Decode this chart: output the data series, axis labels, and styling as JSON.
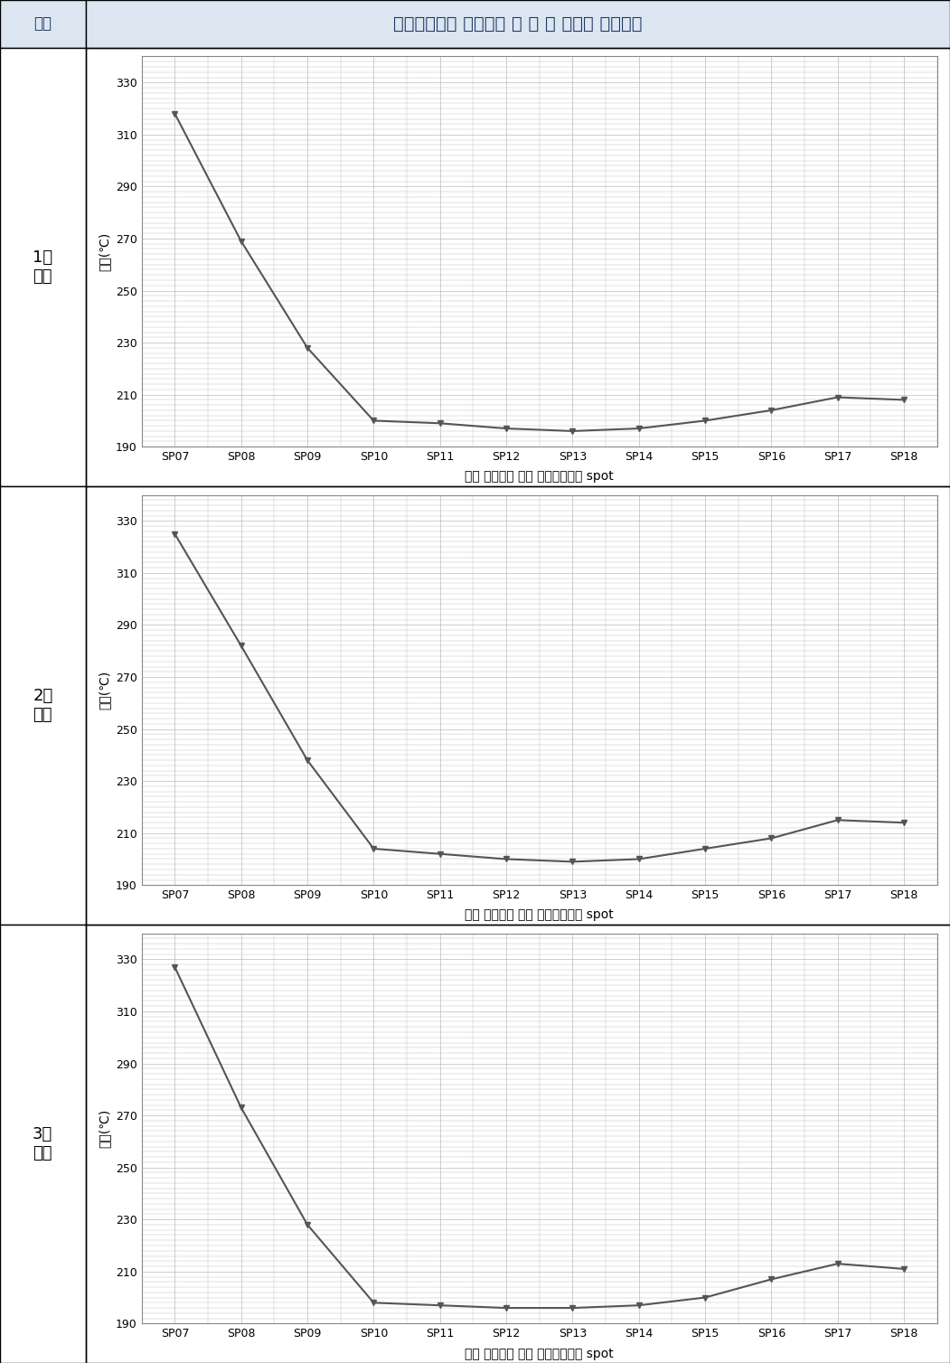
{
  "title_header": "제동디스크의 최고온도 일 때 각 지점의 온도현황",
  "header_label": "구분",
  "x_labels": [
    "SP07",
    "SP08",
    "SP09",
    "SP10",
    "SP11",
    "SP12",
    "SP13",
    "SP14",
    "SP15",
    "SP16",
    "SP17",
    "SP18"
  ],
  "xlabel": "제동 디스크의 회전 중심으로부터 spot",
  "ylabel": "온도(℃)",
  "ylim": [
    190,
    340
  ],
  "yticks": [
    190,
    210,
    230,
    250,
    270,
    290,
    310,
    330
  ],
  "series": [
    {
      "label": "1회\n시험",
      "values": [
        318,
        269,
        228,
        200,
        199,
        197,
        196,
        197,
        200,
        204,
        209,
        208
      ]
    },
    {
      "label": "2회\n시험",
      "values": [
        325,
        282,
        238,
        204,
        202,
        200,
        199,
        200,
        204,
        208,
        215,
        214
      ]
    },
    {
      "label": "3회\n시험",
      "values": [
        327,
        273,
        228,
        198,
        197,
        196,
        196,
        197,
        200,
        207,
        213,
        211
      ]
    }
  ],
  "line_color": "#555555",
  "marker": "v",
  "marker_size": 5,
  "marker_color": "#555555",
  "bg_color": "#ffffff",
  "grid_color": "#bbbbbb",
  "header_bg": "#dce6f1",
  "border_color": "#000000",
  "fig_bg": "#ffffff"
}
